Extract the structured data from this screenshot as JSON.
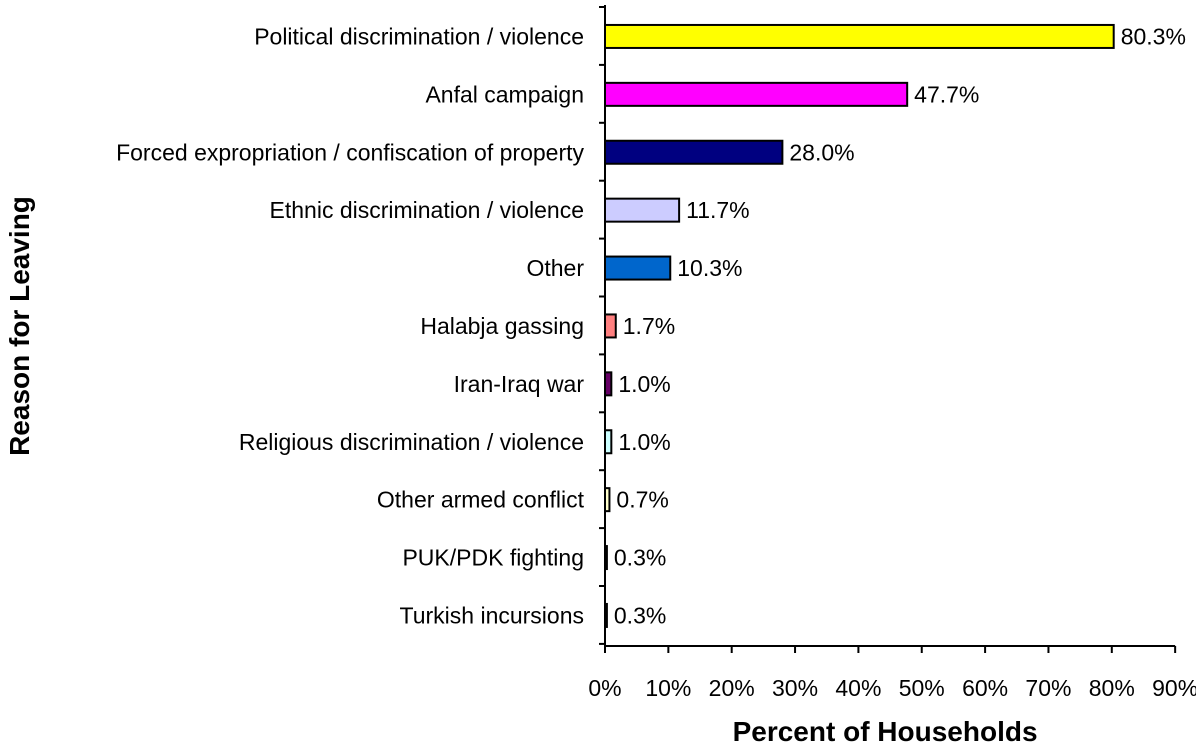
{
  "chart_data": {
    "type": "bar",
    "orientation": "horizontal",
    "xlabel": "Percent of Households",
    "ylabel": "Reason for Leaving",
    "xlim": [
      0,
      90
    ],
    "xticks": [
      0,
      10,
      20,
      30,
      40,
      50,
      60,
      70,
      80,
      90
    ],
    "x_tick_labels": [
      "0%",
      "10%",
      "20%",
      "30%",
      "40%",
      "50%",
      "60%",
      "70%",
      "80%",
      "90%"
    ],
    "grid": false,
    "legend": "none",
    "bars": [
      {
        "category": "Political discrimination / violence",
        "value": 80.3,
        "label": "80.3%",
        "color": "#ffff00"
      },
      {
        "category": "Anfal campaign",
        "value": 47.7,
        "label": "47.7%",
        "color": "#ff00ff"
      },
      {
        "category": "Forced expropriation / confiscation of property",
        "value": 28.0,
        "label": "28.0%",
        "color": "#000080"
      },
      {
        "category": "Ethnic discrimination / violence",
        "value": 11.7,
        "label": "11.7%",
        "color": "#ccccff"
      },
      {
        "category": "Other",
        "value": 10.3,
        "label": "10.3%",
        "color": "#0066cc"
      },
      {
        "category": "Halabja gassing",
        "value": 1.7,
        "label": "1.7%",
        "color": "#ff8080"
      },
      {
        "category": "Iran-Iraq war",
        "value": 1.0,
        "label": "1.0%",
        "color": "#660066"
      },
      {
        "category": "Religious discrimination / violence",
        "value": 1.0,
        "label": "1.0%",
        "color": "#ccffff"
      },
      {
        "category": "Other armed conflict",
        "value": 0.7,
        "label": "0.7%",
        "color": "#ffffcc"
      },
      {
        "category": "PUK/PDK fighting",
        "value": 0.3,
        "label": "0.3%",
        "color": "#000000"
      },
      {
        "category": "Turkish incursions",
        "value": 0.3,
        "label": "0.3%",
        "color": "#000000"
      }
    ]
  }
}
